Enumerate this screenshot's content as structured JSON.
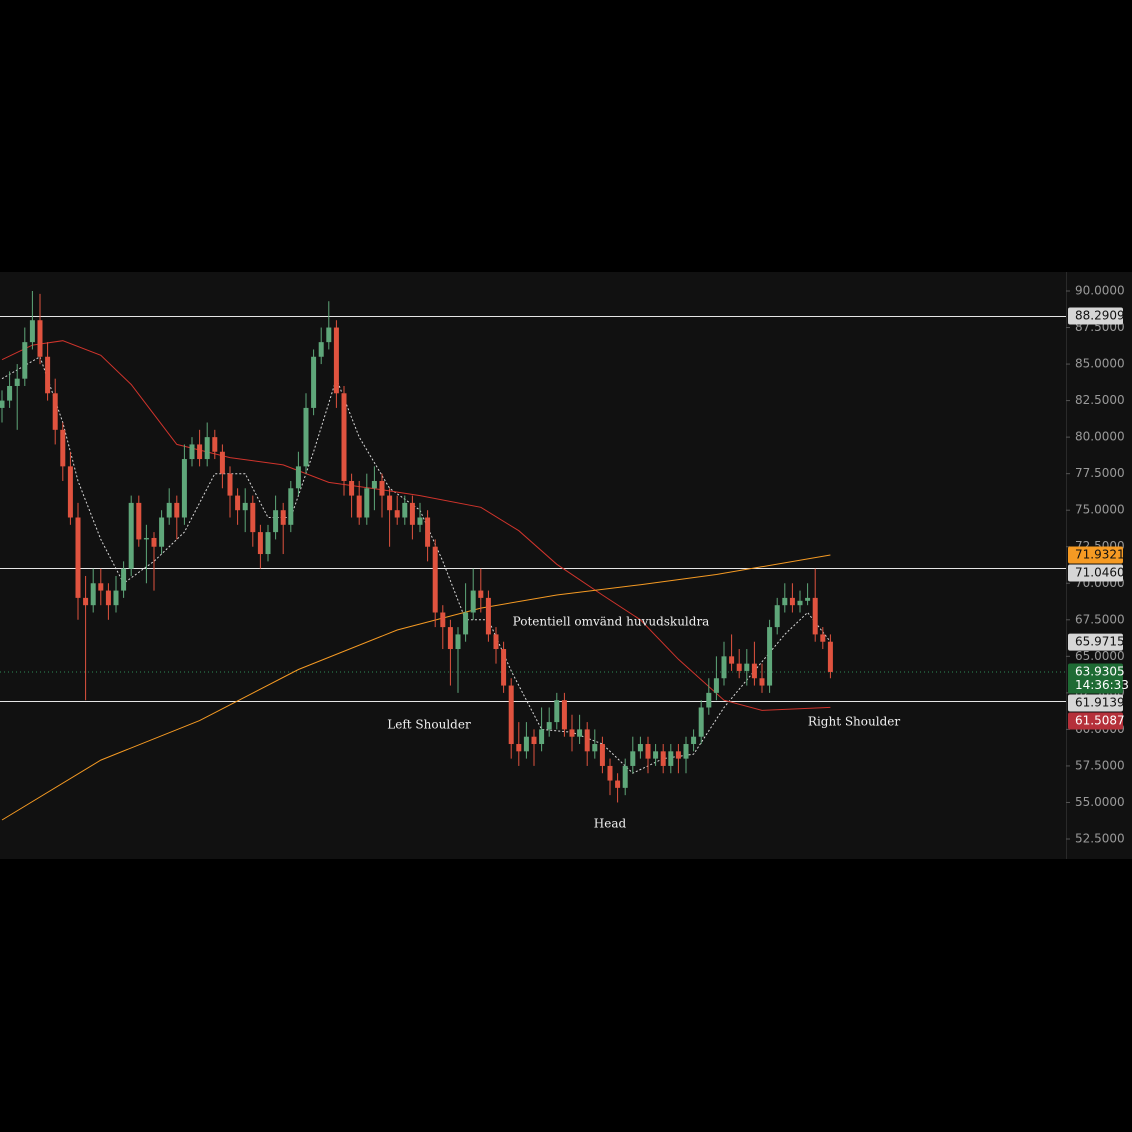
{
  "chart_data": {
    "type": "candlestick",
    "ylim": [
      51.2,
      91.3
    ],
    "yticks": [
      {
        "value": 90,
        "label": "90.0000"
      },
      {
        "value": 87.5,
        "label": "87.5000"
      },
      {
        "value": 85,
        "label": "85.0000"
      },
      {
        "value": 82.5,
        "label": "82.5000"
      },
      {
        "value": 80,
        "label": "80.0000"
      },
      {
        "value": 77.5,
        "label": "77.5000"
      },
      {
        "value": 75,
        "label": "75.0000"
      },
      {
        "value": 72.5,
        "label": "72.5000"
      },
      {
        "value": 70,
        "label": "70.0000"
      },
      {
        "value": 67.5,
        "label": "67.5000"
      },
      {
        "value": 65,
        "label": "65.0000"
      },
      {
        "value": 62.5,
        "label": "62.5000"
      },
      {
        "value": 60,
        "label": "60.0000"
      },
      {
        "value": 57.5,
        "label": "57.5000"
      },
      {
        "value": 55,
        "label": "55.0000"
      },
      {
        "value": 52.5,
        "label": "52.5000"
      }
    ],
    "up_color": "#5fa77a",
    "down_color": "#e0533f",
    "ohlc": [
      [
        82.0,
        83.2,
        81.0,
        82.5
      ],
      [
        82.5,
        84.5,
        82.0,
        83.5
      ],
      [
        83.5,
        85.0,
        80.5,
        84.0
      ],
      [
        84.0,
        87.5,
        83.5,
        86.5
      ],
      [
        86.5,
        90.0,
        86.0,
        88.0
      ],
      [
        88.0,
        89.8,
        85.0,
        85.5
      ],
      [
        85.5,
        86.5,
        82.5,
        83.0
      ],
      [
        83.0,
        84.0,
        79.5,
        80.5
      ],
      [
        80.5,
        81.0,
        77.0,
        78.0
      ],
      [
        78.0,
        79.0,
        74.0,
        74.5
      ],
      [
        74.5,
        75.5,
        67.5,
        69.0
      ],
      [
        69.0,
        70.5,
        62.0,
        68.5
      ],
      [
        68.5,
        71.0,
        68.0,
        70.0
      ],
      [
        70.0,
        71.0,
        68.5,
        69.5
      ],
      [
        69.5,
        70.0,
        67.5,
        68.5
      ],
      [
        68.5,
        70.5,
        68.0,
        69.5
      ],
      [
        69.5,
        71.5,
        69.0,
        71.0
      ],
      [
        71.0,
        76.0,
        70.5,
        75.5
      ],
      [
        75.5,
        76.0,
        72.5,
        73.0
      ],
      [
        73.0,
        74.0,
        70.0,
        73.1
      ],
      [
        73.1,
        73.5,
        69.5,
        72.5
      ],
      [
        72.5,
        75.0,
        72.0,
        74.5
      ],
      [
        74.5,
        76.5,
        74.0,
        75.5
      ],
      [
        75.5,
        76.0,
        73.0,
        74.5
      ],
      [
        74.5,
        79.5,
        74.0,
        78.5
      ],
      [
        78.5,
        80.0,
        78.0,
        79.5
      ],
      [
        79.5,
        80.5,
        78.0,
        78.5
      ],
      [
        78.5,
        81.0,
        78.0,
        80.0
      ],
      [
        80.0,
        80.5,
        78.5,
        79.0
      ],
      [
        79.0,
        79.5,
        76.5,
        77.5
      ],
      [
        77.5,
        78.0,
        74.5,
        76.0
      ],
      [
        76.0,
        76.5,
        74.0,
        75.0
      ],
      [
        75.0,
        76.5,
        73.5,
        75.5
      ],
      [
        75.5,
        76.0,
        72.5,
        73.5
      ],
      [
        73.5,
        74.0,
        71.0,
        72.0
      ],
      [
        72.0,
        74.0,
        71.5,
        73.5
      ],
      [
        73.5,
        76.0,
        73.0,
        75.0
      ],
      [
        75.0,
        75.5,
        72.0,
        74.0
      ],
      [
        74.0,
        77.0,
        73.5,
        76.5
      ],
      [
        76.5,
        79.0,
        76.0,
        78.0
      ],
      [
        78.0,
        83.0,
        77.5,
        82.0
      ],
      [
        82.0,
        86.0,
        81.5,
        85.5
      ],
      [
        85.5,
        87.5,
        85.0,
        86.5
      ],
      [
        86.5,
        89.3,
        86.0,
        87.5
      ],
      [
        87.5,
        88.0,
        82.0,
        83.0
      ],
      [
        83.0,
        83.5,
        76.0,
        77.0
      ],
      [
        77.0,
        77.5,
        74.5,
        76.0
      ],
      [
        76.0,
        77.0,
        74.0,
        74.5
      ],
      [
        74.5,
        77.5,
        74.0,
        76.5
      ],
      [
        76.5,
        78.0,
        75.0,
        77.0
      ],
      [
        77.0,
        77.5,
        74.5,
        76.0
      ],
      [
        76.0,
        76.5,
        72.5,
        75.0
      ],
      [
        75.0,
        76.0,
        74.0,
        74.5
      ],
      [
        74.5,
        76.0,
        74.0,
        75.5
      ],
      [
        75.5,
        76.0,
        73.0,
        74.0
      ],
      [
        74.0,
        75.5,
        73.5,
        74.5
      ],
      [
        74.5,
        75.0,
        71.5,
        72.5
      ],
      [
        72.5,
        73.0,
        67.0,
        68.0
      ],
      [
        68.0,
        68.5,
        65.5,
        67.0
      ],
      [
        67.0,
        67.5,
        63.0,
        65.5
      ],
      [
        65.5,
        67.0,
        62.5,
        66.5
      ],
      [
        66.5,
        70.0,
        66.0,
        68.0
      ],
      [
        68.0,
        71.0,
        67.5,
        69.5
      ],
      [
        69.5,
        71.0,
        68.0,
        69.0
      ],
      [
        69.0,
        69.5,
        66.0,
        66.5
      ],
      [
        66.5,
        67.0,
        64.5,
        65.5
      ],
      [
        65.5,
        66.0,
        62.5,
        63.0
      ],
      [
        63.0,
        63.5,
        58.0,
        59.0
      ],
      [
        59.0,
        60.5,
        57.5,
        58.5
      ],
      [
        58.5,
        60.5,
        58.0,
        59.5
      ],
      [
        59.5,
        60.0,
        57.5,
        59.0
      ],
      [
        59.0,
        61.5,
        58.5,
        60.0
      ],
      [
        60.0,
        61.5,
        59.5,
        60.5
      ],
      [
        60.5,
        62.5,
        60.0,
        62.0
      ],
      [
        62.0,
        62.5,
        59.5,
        60.0
      ],
      [
        60.0,
        61.0,
        58.5,
        59.5
      ],
      [
        59.5,
        61.0,
        59.0,
        60.0
      ],
      [
        60.0,
        60.5,
        57.5,
        58.5
      ],
      [
        58.5,
        60.0,
        58.0,
        59.0
      ],
      [
        59.0,
        59.5,
        57.0,
        57.5
      ],
      [
        57.5,
        58.0,
        55.5,
        56.5
      ],
      [
        56.5,
        57.0,
        55.0,
        56.0
      ],
      [
        56.0,
        58.0,
        55.5,
        57.5
      ],
      [
        57.5,
        59.5,
        57.0,
        58.5
      ],
      [
        58.5,
        59.5,
        58.0,
        59.0
      ],
      [
        59.0,
        59.5,
        57.0,
        58.0
      ],
      [
        58.0,
        59.0,
        57.5,
        58.5
      ],
      [
        58.5,
        59.0,
        57.0,
        57.5
      ],
      [
        57.5,
        59.0,
        57.0,
        58.5
      ],
      [
        58.5,
        59.0,
        57.0,
        58.0
      ],
      [
        58.0,
        59.5,
        57.0,
        59.0
      ],
      [
        59.0,
        60.0,
        58.5,
        59.5
      ],
      [
        59.5,
        62.0,
        59.0,
        61.5
      ],
      [
        61.5,
        63.5,
        61.0,
        62.5
      ],
      [
        62.5,
        65.0,
        62.0,
        63.5
      ],
      [
        63.5,
        66.0,
        63.0,
        65.0
      ],
      [
        65.0,
        66.5,
        64.0,
        64.5
      ],
      [
        64.5,
        65.5,
        63.5,
        64.0
      ],
      [
        64.0,
        65.5,
        63.0,
        64.5
      ],
      [
        64.5,
        66.0,
        63.0,
        63.5
      ],
      [
        63.5,
        64.5,
        62.5,
        63.0
      ],
      [
        63.0,
        67.5,
        62.5,
        67.0
      ],
      [
        67.0,
        69.0,
        66.5,
        68.5
      ],
      [
        68.5,
        70.0,
        68.0,
        69.0
      ],
      [
        69.0,
        70.0,
        68.0,
        68.5
      ],
      [
        68.5,
        69.5,
        68.0,
        68.8
      ],
      [
        68.8,
        70.0,
        68.5,
        69.0
      ],
      [
        69.0,
        71.0,
        66.0,
        66.5
      ],
      [
        66.5,
        67.0,
        65.5,
        66.0
      ],
      [
        66.0,
        66.5,
        63.5,
        63.9305
      ]
    ],
    "lines": [
      {
        "color": "#d8d8d8",
        "style": "dotted",
        "x": [
          0,
          5,
          8,
          10,
          13,
          16,
          20,
          24,
          28,
          32,
          35,
          38,
          41,
          44,
          47,
          51,
          55,
          58,
          61,
          64,
          67,
          71,
          75,
          79,
          83,
          87,
          91,
          95,
          99,
          103,
          106,
          109
        ],
        "values": [
          84,
          85.5,
          81,
          77,
          73,
          70,
          71.5,
          73.5,
          77.5,
          77.5,
          74.5,
          74.5,
          79,
          84,
          80,
          76.5,
          75,
          71.5,
          67.5,
          67.5,
          64,
          60,
          59.8,
          59,
          57,
          58,
          58.3,
          61.5,
          64,
          66.5,
          68,
          66
        ]
      },
      {
        "color": "#d0342c",
        "style": "solid",
        "x": [
          0,
          4,
          8,
          13,
          17,
          23,
          30,
          37,
          43,
          50,
          55,
          63,
          68,
          73,
          79,
          84,
          89,
          95,
          100,
          109
        ],
        "values": [
          85.3,
          86.3,
          86.6,
          85.6,
          83.6,
          79.5,
          78.6,
          78.1,
          76.9,
          76.4,
          76,
          75.2,
          73.6,
          71.3,
          69.2,
          67.5,
          64.8,
          62,
          61.3,
          61.5087
        ]
      },
      {
        "color": "#f59a23",
        "style": "solid",
        "x": [
          0,
          13,
          26,
          39,
          52,
          63,
          73,
          84,
          94,
          109
        ],
        "values": [
          53.8,
          57.9,
          60.6,
          64.1,
          66.8,
          68.3,
          69.2,
          69.9,
          70.6,
          71.9321
        ]
      }
    ],
    "hlines": [
      88.2909,
      71.046,
      61.9139
    ],
    "current_price": 63.9305,
    "price_labels": [
      {
        "value": 88.2909,
        "label": "88.2909",
        "color": "#d6d6d6",
        "text_color": "#111111"
      },
      {
        "value": 71.9321,
        "label": "71.9321",
        "color": "#f59a23",
        "text_color": "#111111"
      },
      {
        "value": 71.046,
        "label": "71.0460",
        "color": "#d6d6d6",
        "text_color": "#111111"
      },
      {
        "value": 65.9715,
        "label": "65.9715",
        "color": "#d6d6d6",
        "text_color": "#111111"
      },
      {
        "value": 63.9305,
        "label": "63.9305",
        "countdown": "14:36:33",
        "color": "#1e6b34",
        "text_color": "#ffffff"
      },
      {
        "value": 61.9139,
        "label": "61.9139",
        "color": "#d6d6d6",
        "text_color": "#111111"
      },
      {
        "value": 61.5087,
        "label": "61.5087",
        "color": "#b5303a",
        "text_color": "#ffffff"
      }
    ],
    "annotations": [
      "Potentiell omvänd huvudskuldra",
      "Left Shoulder",
      "Head",
      "Right Shoulder"
    ]
  }
}
